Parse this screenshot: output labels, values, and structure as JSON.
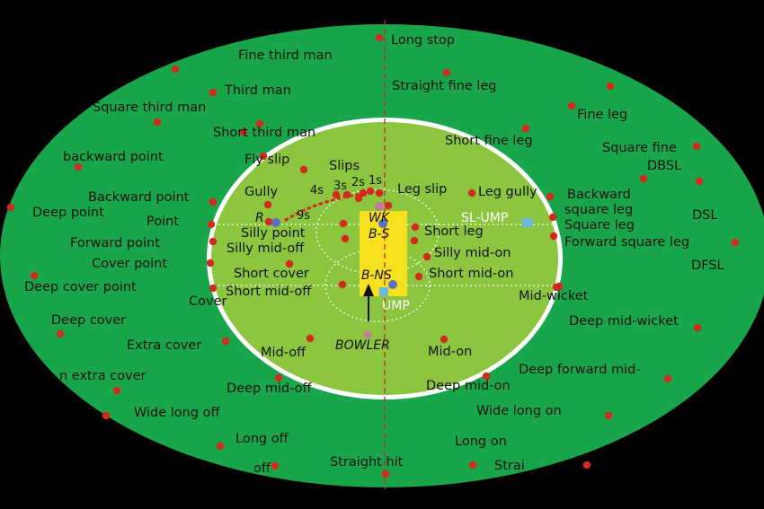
{
  "colors": {
    "background": "#000000",
    "outfield": "#19a64a",
    "inner_ring": "#ffffff",
    "infield": "#8cc63f",
    "pitch": "#f6e11e",
    "fielder_dot": "#d12b1f",
    "centre_line": "#c8282d"
  },
  "fielding_positions": [
    "Long stop",
    "Fine third man",
    "Straight fine leg",
    "Third man",
    "Square third man",
    "Fine leg",
    "Short third man",
    "Short fine leg",
    "Square fine",
    "backward point",
    "Fly slip",
    "Slips",
    "DBSL",
    "Gully",
    "Leg slip",
    "Leg gully",
    "Backward point",
    "Backward",
    "square leg",
    "Deep point",
    "DSL",
    "Point",
    "Silly point",
    "Short leg",
    "Square leg",
    "Forward point",
    "Forward square leg",
    "Silly mid-off",
    "Silly mid-on",
    "Cover point",
    "DFSL",
    "Short cover",
    "Short mid-on",
    "Deep cover point",
    "Short  mid-off",
    "Cover",
    "Mid-wicket",
    "Deep cover",
    "Deep mid-wicket",
    "Extra cover",
    "Mid-off",
    "Mid-on",
    "Deep forward mid-",
    "n extra cover",
    "Deep mid-off",
    "Deep mid-on",
    "Wide long off",
    "Wide long on",
    "Long off",
    "Long on",
    "Straight hit",
    "off",
    "Strai"
  ],
  "slip_marks": [
    "4s",
    "3s",
    "2s",
    "1s",
    "9s"
  ],
  "pitch_marks": {
    "wicket_keeper": "WK",
    "batsman_striker": "B-S",
    "batsman_non_striker": "B-NS",
    "bowler": "BOWLER",
    "umpire": "UMP",
    "square_leg_umpire": "SL-UMP",
    "r_mark": "R"
  }
}
